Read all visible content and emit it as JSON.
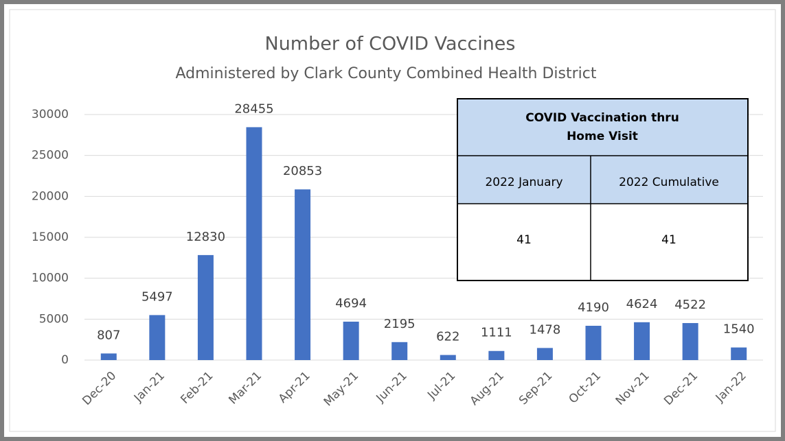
{
  "chart_data": {
    "type": "bar",
    "title": "Number of COVID Vaccines",
    "subtitle": "Administered by Clark County Combined Health District",
    "categories": [
      "Dec-20",
      "Jan-21",
      "Feb-21",
      "Mar-21",
      "Apr-21",
      "May-21",
      "Jun-21",
      "Jul-21",
      "Aug-21",
      "Sep-21",
      "Oct-21",
      "Nov-21",
      "Dec-21",
      "Jan-22"
    ],
    "values": [
      807,
      5497,
      12830,
      28455,
      20853,
      4694,
      2195,
      622,
      1111,
      1478,
      4190,
      4624,
      4522,
      1540
    ],
    "color": "#4472c4",
    "ylim": [
      0,
      30000
    ],
    "yticks": [
      0,
      5000,
      10000,
      15000,
      20000,
      25000,
      30000
    ],
    "grid": true
  },
  "table": {
    "title": [
      "COVID Vaccination thru",
      "Home Visit"
    ],
    "headers": [
      "2022 January",
      "2022 Cumulative"
    ],
    "rows": [
      [
        "41",
        "41"
      ]
    ]
  }
}
